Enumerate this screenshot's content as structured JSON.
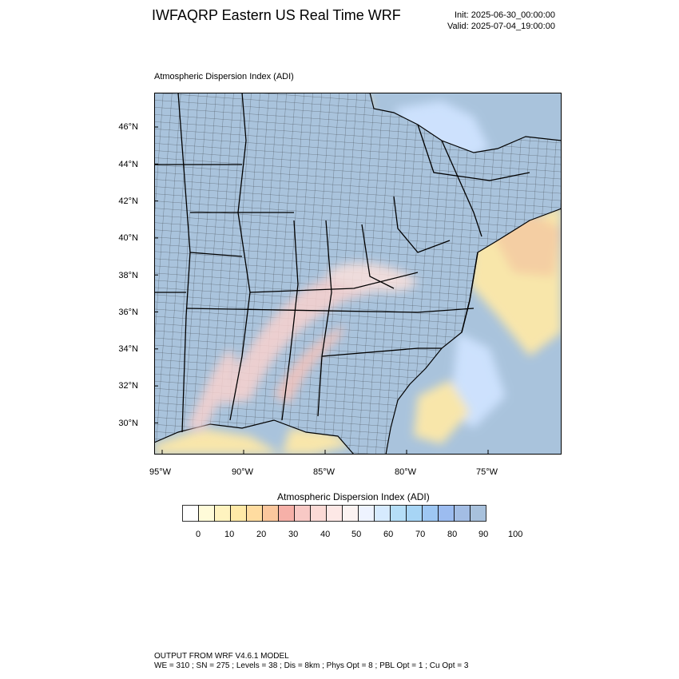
{
  "header": {
    "title": "IWFAQRP Eastern US Real Time WRF",
    "init_time": "Init: 2025-06-30_00:00:00",
    "valid_time": "Valid: 2025-07-04_19:00:00"
  },
  "map": {
    "panel_title": "Atmospheric Dispersion Index   (ADI)",
    "lat_labels": [
      "46°N",
      "44°N",
      "42°N",
      "40°N",
      "38°N",
      "36°N",
      "34°N",
      "32°N",
      "30°N"
    ],
    "lon_labels": [
      "95°W",
      "90°W",
      "85°W",
      "80°W",
      "75°W"
    ],
    "colors": {
      "land_fill": "#a9c3dc",
      "water_low": "#fde8a8",
      "water_mid": "#f9cfa0",
      "boundary": "#000000",
      "county_line": "#1a1a1a"
    }
  },
  "colorbar": {
    "title": "Atmospheric Dispersion Index  (ADI)",
    "tick_labels": [
      "0",
      "10",
      "20",
      "30",
      "40",
      "50",
      "60",
      "70",
      "80",
      "90",
      "100"
    ],
    "colors": [
      "#ffffff",
      "#fffbd9",
      "#fff3bf",
      "#ffe9a7",
      "#ffdca0",
      "#fbc79d",
      "#f6b0a8",
      "#f8c9c5",
      "#fbdad6",
      "#fde8e6",
      "#fbf3f2",
      "#eef3ff",
      "#d6eafe",
      "#b5def7",
      "#a7d5f5",
      "#9ec7f3",
      "#9cbcf0",
      "#a3bde4",
      "#a8c1dc"
    ]
  },
  "footer": {
    "line1": "OUTPUT FROM WRF V4.6.1 MODEL",
    "line2": "WE = 310 ; SN = 275 ; Levels = 38 ; Dis = 8km ; Phys Opt = 8 ; PBL Opt = 1 ; Cu Opt = 3"
  }
}
